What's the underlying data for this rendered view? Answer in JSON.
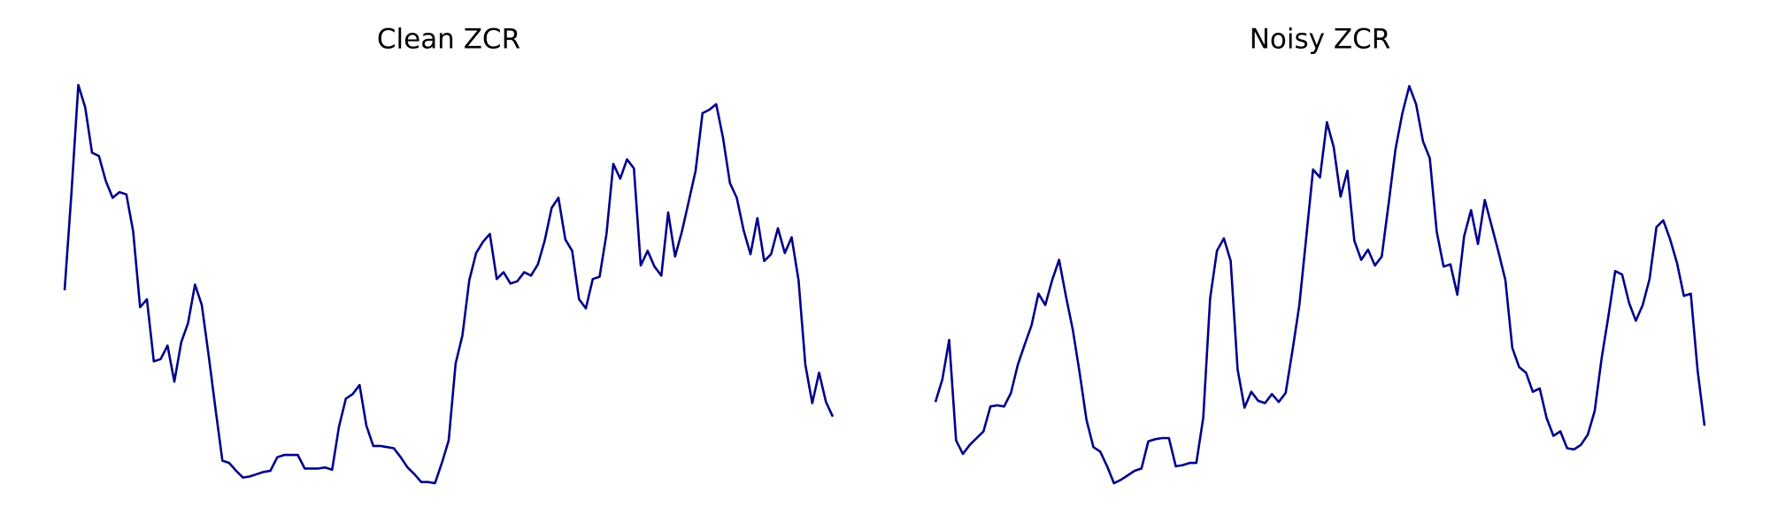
{
  "chart_data": [
    {
      "type": "line",
      "title": "Clean ZCR",
      "color": "#00008b",
      "values": [
        173,
        260,
        355,
        335,
        295,
        292,
        270,
        255,
        260,
        258,
        225,
        158,
        165,
        110,
        112,
        124,
        92,
        127,
        144,
        178,
        160,
        115,
        68,
        22,
        20,
        13,
        7,
        8,
        10,
        12,
        13,
        25,
        27,
        27,
        27,
        15,
        15,
        15,
        16,
        14,
        52,
        77,
        81,
        89,
        53,
        35,
        35,
        34,
        33,
        25,
        16,
        10,
        3,
        3,
        2,
        20,
        40,
        108,
        133,
        182,
        206,
        216,
        223,
        183,
        189,
        179,
        181,
        189,
        186,
        196,
        217,
        246,
        255,
        218,
        208,
        165,
        157,
        183,
        185,
        223,
        285,
        272,
        289,
        281,
        195,
        208,
        194,
        186,
        242,
        203,
        225,
        252,
        279,
        330,
        333,
        338,
        308,
        268,
        255,
        226,
        205,
        237,
        199,
        205,
        228,
        206,
        220,
        182,
        107,
        73,
        100,
        74,
        61
      ]
    },
    {
      "type": "line",
      "title": "Noisy ZCR",
      "color": "#00008b",
      "values": [
        74,
        94,
        129,
        40,
        28,
        36,
        42,
        48,
        70,
        71,
        70,
        82,
        107,
        125,
        142,
        170,
        160,
        182,
        200,
        168,
        138,
        100,
        58,
        34,
        30,
        17,
        2,
        5,
        9,
        13,
        15,
        39,
        41,
        42,
        42,
        17,
        18,
        20,
        20,
        60,
        166,
        208,
        219,
        199,
        103,
        69,
        83,
        75,
        73,
        81,
        74,
        82,
        120,
        160,
        220,
        280,
        273,
        322,
        300,
        256,
        279,
        217,
        200,
        209,
        195,
        203,
        250,
        298,
        330,
        354,
        338,
        305,
        290,
        225,
        194,
        196,
        169,
        221,
        244,
        214,
        253,
        230,
        207,
        182,
        122,
        105,
        100,
        83,
        86,
        60,
        44,
        48,
        33,
        32,
        36,
        45,
        66,
        112,
        150,
        190,
        187,
        162,
        146,
        160,
        183,
        229,
        235,
        218,
        197,
        168,
        170,
        102,
        53
      ]
    }
  ]
}
